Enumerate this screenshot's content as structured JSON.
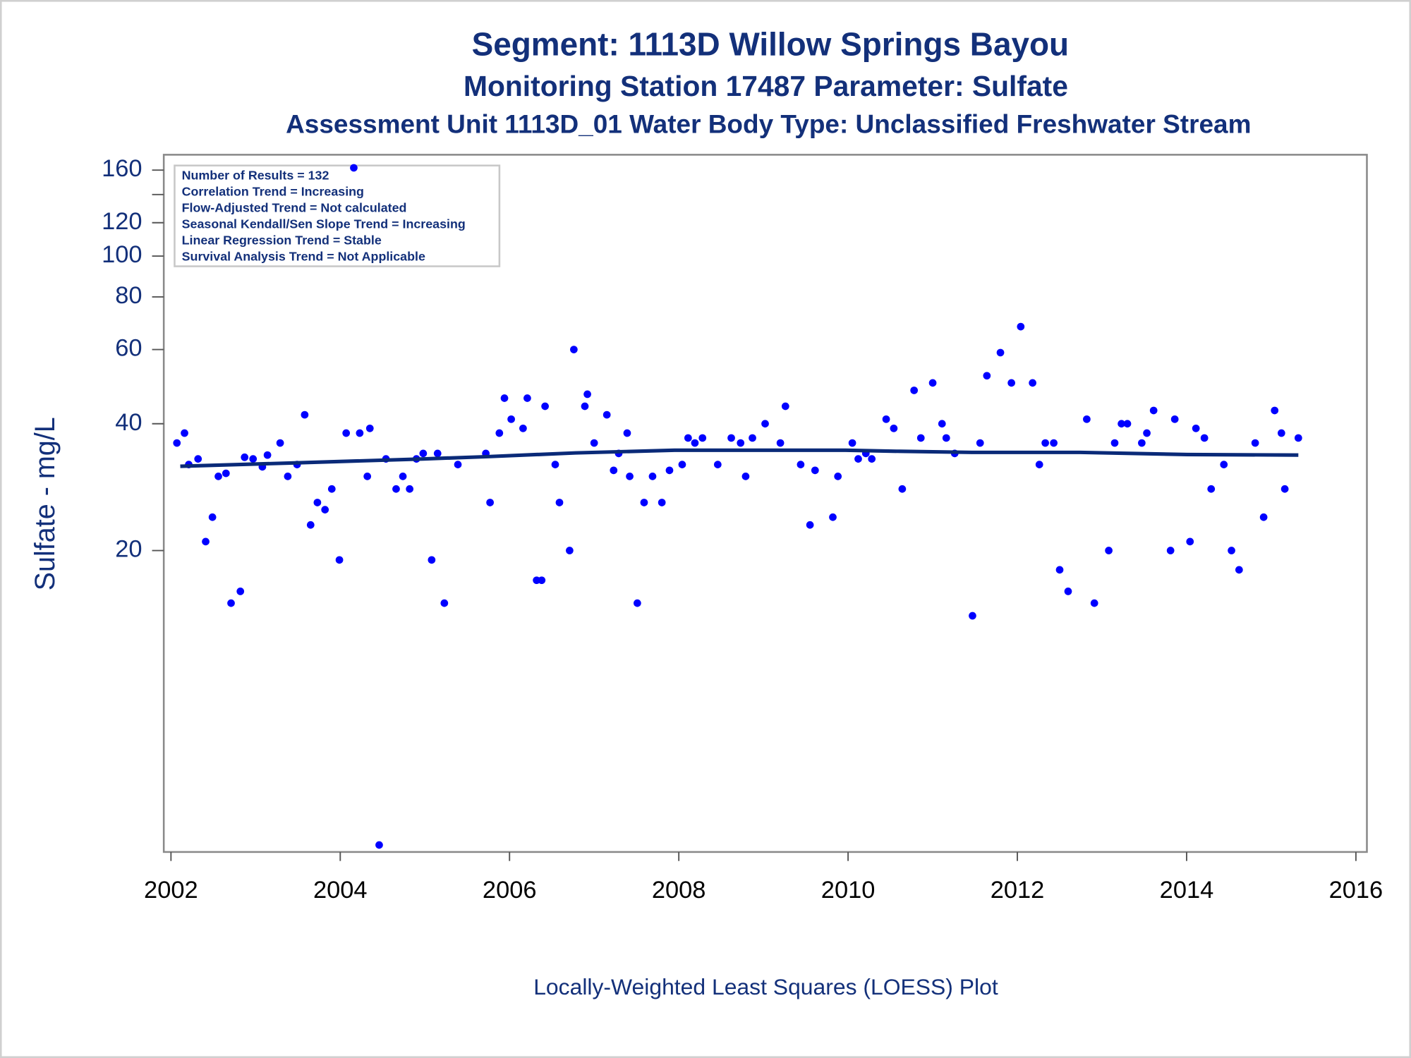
{
  "chart_data": {
    "type": "scatter",
    "title": "Segment: 1113D  Willow Springs Bayou",
    "subtitle": "Monitoring Station 17487 Parameter: Sulfate",
    "subtitle2": "Assessment Unit 1113D_01   Water Body Type: Unclassified Freshwater Stream",
    "y_label": "Sulfate - mg/L",
    "x_label": "Locally-Weighted Least Squares (LOESS) Plot",
    "annotations": [
      "Number of Results = 132",
      "Correlation Trend = Increasing",
      "Flow-Adjusted Trend = Not calculated",
      "Seasonal Kendall/Sen Slope Trend = Increasing",
      "Linear Regression Trend = Stable",
      "Survival Analysis Trend = Not Applicable"
    ],
    "y_log": true,
    "xlim": [
      2001.915,
      2016.13
    ],
    "xticks": [
      2002,
      2004,
      2006,
      2008,
      2010,
      2012,
      2014,
      2016
    ],
    "ylim": [
      3.85,
      174
    ],
    "yticks": [
      20,
      40,
      60,
      80,
      100,
      120,
      {
        "value": 140
      },
      160
    ],
    "color": "#0000ff",
    "x": [
      2002.07,
      2002.16,
      2002.21,
      2002.32,
      2002.41,
      2002.49,
      2002.56,
      2002.65,
      2002.71,
      2002.82,
      2002.87,
      2002.97,
      2003.08,
      2003.14,
      2003.29,
      2003.38,
      2003.49,
      2003.58,
      2003.65,
      2003.73,
      2003.82,
      2003.9,
      2003.99,
      2004.07,
      2004.16,
      2004.23,
      2004.32,
      2004.35,
      2004.46,
      2004.54,
      2004.66,
      2004.74,
      2004.82,
      2004.9,
      2004.98,
      2005.08,
      2005.15,
      2005.23,
      2005.39,
      2005.72,
      2005.77,
      2005.88,
      2005.94,
      2006.02,
      2006.16,
      2006.21,
      2006.32,
      2006.38,
      2006.42,
      2006.54,
      2006.59,
      2006.71,
      2006.76,
      2006.89,
      2006.92,
      2007.0,
      2007.15,
      2007.23,
      2007.29,
      2007.39,
      2007.42,
      2007.51,
      2007.59,
      2007.69,
      2007.8,
      2007.89,
      2008.04,
      2008.11,
      2008.19,
      2008.28,
      2008.46,
      2008.62,
      2008.73,
      2008.79,
      2008.87,
      2009.02,
      2009.2,
      2009.26,
      2009.44,
      2009.55,
      2009.61,
      2009.82,
      2009.88,
      2010.05,
      2010.12,
      2010.21,
      2010.28,
      2010.45,
      2010.54,
      2010.64,
      2010.78,
      2010.86,
      2011.0,
      2011.11,
      2011.16,
      2011.26,
      2011.47,
      2011.56,
      2011.64,
      2011.8,
      2011.93,
      2012.04,
      2012.18,
      2012.26,
      2012.33,
      2012.43,
      2012.5,
      2012.6,
      2012.82,
      2012.91,
      2013.08,
      2013.15,
      2013.23,
      2013.3,
      2013.47,
      2013.53,
      2013.61,
      2013.81,
      2013.86,
      2014.04,
      2014.11,
      2014.21,
      2014.29,
      2014.44,
      2014.53,
      2014.62,
      2014.81,
      2014.91,
      2015.04,
      2015.12,
      2015.16,
      2015.32
    ],
    "values": [
      36,
      38,
      32,
      33,
      21,
      24,
      30,
      30.5,
      15,
      16,
      33.3,
      33,
      31.6,
      33.7,
      36,
      30,
      32,
      42,
      23,
      26,
      25,
      28,
      19,
      38,
      162,
      38,
      30,
      39,
      4,
      33,
      28,
      30,
      28,
      33,
      34,
      19,
      34,
      15,
      32,
      34,
      26,
      38,
      46,
      41,
      39,
      46,
      17,
      17,
      44,
      32,
      26,
      20,
      60,
      44,
      47,
      36,
      42,
      31,
      34,
      38,
      30,
      15,
      26,
      30,
      26,
      31,
      32,
      37,
      36,
      37,
      32,
      37,
      36,
      30,
      37,
      40,
      36,
      44,
      32,
      23,
      31,
      24,
      30,
      36,
      33,
      34,
      33,
      41,
      39,
      28,
      48,
      37,
      50,
      40,
      37,
      34,
      14,
      36,
      52,
      59,
      50,
      68,
      50,
      32,
      36,
      36,
      18,
      16,
      41,
      15,
      20,
      36,
      40,
      40,
      36,
      38,
      43,
      20,
      41,
      21,
      39,
      37,
      28,
      32,
      20,
      18,
      36,
      24,
      43,
      38,
      28,
      37
    ],
    "fit": {
      "color": "#0a2a78",
      "x": [
        2002.11,
        2003.49,
        2004.98,
        2005.72,
        2006.78,
        2007.95,
        2009.02,
        2009.97,
        2010.61,
        2011.46,
        2012.74,
        2014.01,
        2015.32
      ],
      "values": [
        31.7,
        32.3,
        33.0,
        33.4,
        34.1,
        34.6,
        34.6,
        34.6,
        34.4,
        34.2,
        34.2,
        33.8,
        33.7
      ]
    }
  }
}
